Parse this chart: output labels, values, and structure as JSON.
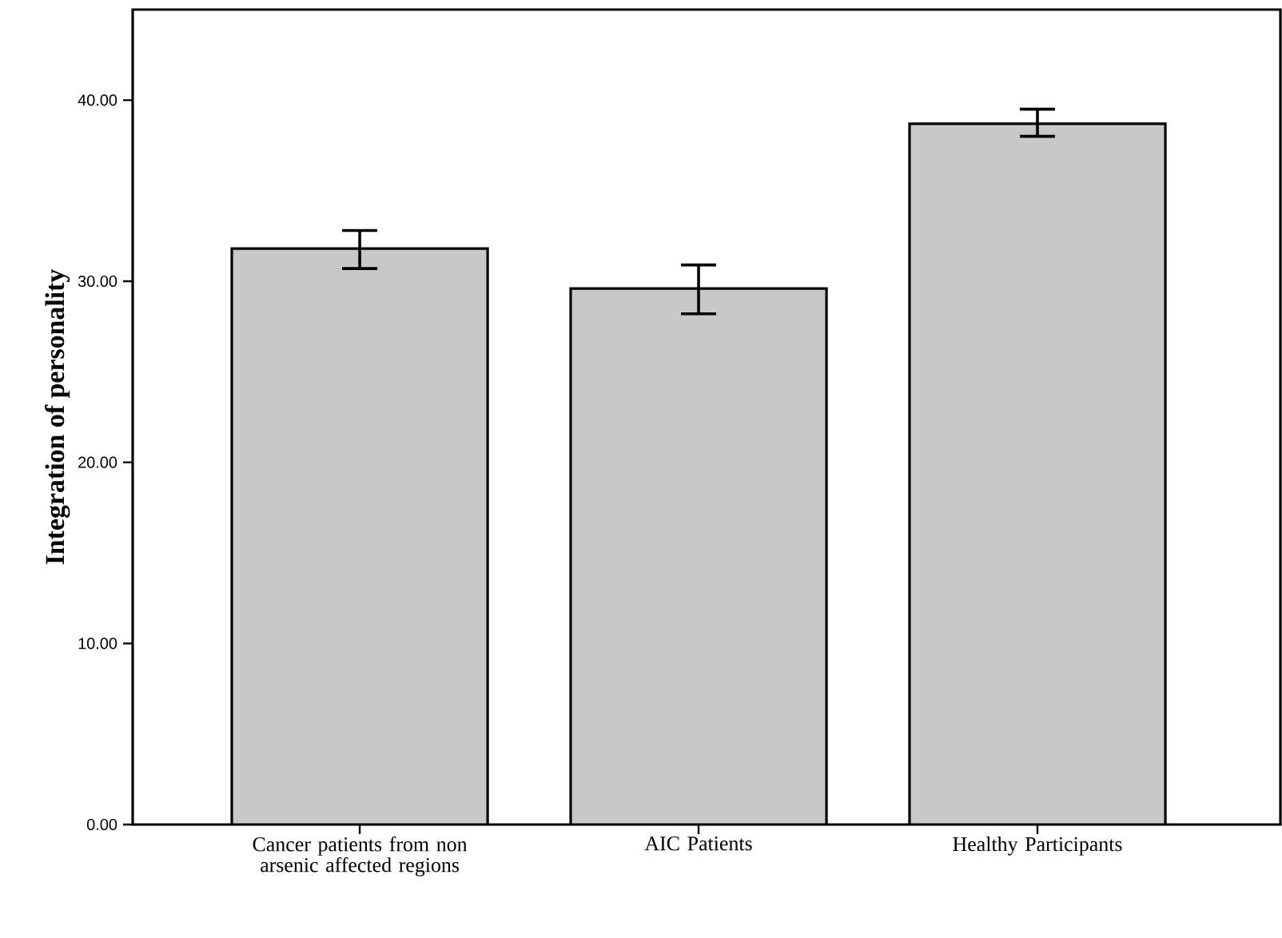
{
  "chart_data": {
    "type": "bar",
    "ylabel": "Integration of personality",
    "categories": [
      "Cancer patients from non arsenic affected regions",
      "AIC Patients",
      "Healthy Participants"
    ],
    "values": [
      31.8,
      29.6,
      38.7
    ],
    "errors": [
      [
        30.7,
        32.8
      ],
      [
        28.2,
        30.9
      ],
      [
        38.0,
        39.5
      ]
    ],
    "color": "#c8c8c8",
    "ylim": [
      0,
      45
    ],
    "yticks": [
      {
        "value": 0,
        "label": "0.00"
      },
      {
        "value": 10,
        "label": "10.00"
      },
      {
        "value": 20,
        "label": "20.00"
      },
      {
        "value": 30,
        "label": "30.00"
      },
      {
        "value": 40,
        "label": "40.00"
      }
    ],
    "grid": false
  }
}
